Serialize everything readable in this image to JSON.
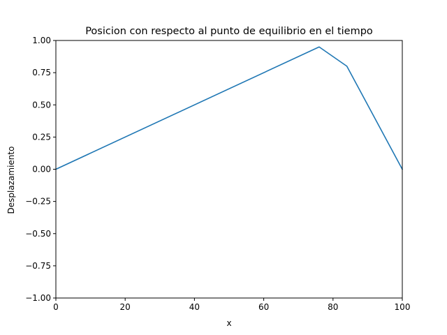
{
  "chart_data": {
    "type": "line",
    "title": "Posicion con respecto al punto de equilibrio en el tiempo",
    "xlabel": "x",
    "ylabel": "Desplazamiento",
    "xlim": [
      0,
      100
    ],
    "ylim": [
      -1.0,
      1.0
    ],
    "xticks": [
      0,
      20,
      40,
      60,
      80,
      100
    ],
    "xtick_labels": [
      "0",
      "20",
      "40",
      "60",
      "80",
      "100"
    ],
    "yticks": [
      -1.0,
      -0.75,
      -0.5,
      -0.25,
      0.0,
      0.25,
      0.5,
      0.75,
      1.0
    ],
    "ytick_labels": [
      "−1.00",
      "−0.75",
      "−0.50",
      "−0.25",
      "0.00",
      "0.25",
      "0.50",
      "0.75",
      "1.00"
    ],
    "grid": false,
    "series": [
      {
        "color": "#1f77b4",
        "x": [
          0,
          76,
          84,
          100
        ],
        "y": [
          0.0,
          0.95,
          0.8,
          0.0
        ]
      }
    ]
  }
}
